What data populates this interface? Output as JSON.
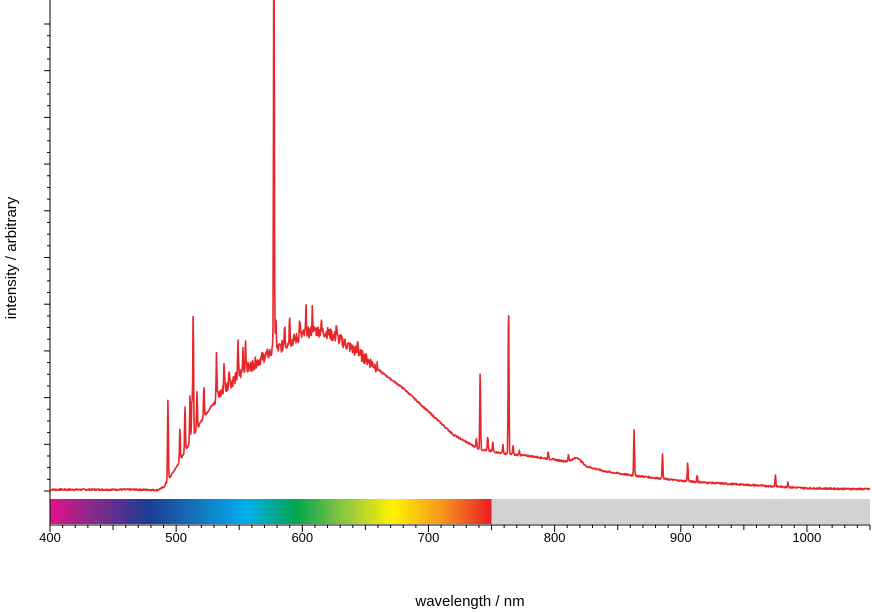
{
  "chart_data": {
    "type": "line",
    "title": "",
    "xlabel": "wavelength / nm",
    "ylabel": "intensity / arbitrary",
    "xlim": [
      400,
      1050
    ],
    "ylim": [
      0,
      100
    ],
    "x_ticks": [
      400,
      500,
      600,
      700,
      800,
      900,
      1000
    ],
    "x_tick_labels": [
      "400",
      "500",
      "600",
      "700",
      "800",
      "900",
      "1000"
    ],
    "y_tick_labels_shown": false,
    "grid": false,
    "legend": "none",
    "line_color": "#e8262a",
    "visible_spectrum_bar": {
      "range_nm": [
        400,
        750
      ],
      "out_of_range_color": "#d2d2d2",
      "colors": [
        "#e4128c",
        "#7b2c8c",
        "#1c3c94",
        "#1474bc",
        "#00aeef",
        "#00a651",
        "#8dc63f",
        "#fff200",
        "#f7941d",
        "#ed1c24"
      ]
    },
    "series": [
      {
        "baseline": [
          [
            400,
            0.3
          ],
          [
            470,
            0.3
          ],
          [
            485,
            0.2
          ],
          [
            490,
            0.8
          ],
          [
            500,
            5
          ],
          [
            510,
            10
          ],
          [
            520,
            15
          ],
          [
            530,
            19
          ],
          [
            540,
            22
          ],
          [
            550,
            24.5
          ],
          [
            560,
            26.5
          ],
          [
            570,
            28.5
          ],
          [
            580,
            30
          ],
          [
            590,
            31.5
          ],
          [
            600,
            33
          ],
          [
            610,
            34
          ],
          [
            620,
            33.5
          ],
          [
            630,
            32
          ],
          [
            640,
            30
          ],
          [
            650,
            28
          ],
          [
            660,
            26
          ],
          [
            670,
            24
          ],
          [
            680,
            22
          ],
          [
            690,
            19.5
          ],
          [
            700,
            17
          ],
          [
            710,
            14.5
          ],
          [
            720,
            12
          ],
          [
            730,
            10.5
          ],
          [
            740,
            9
          ],
          [
            750,
            8.5
          ],
          [
            760,
            8
          ],
          [
            780,
            7.5
          ],
          [
            800,
            6.7
          ],
          [
            810,
            6.3
          ],
          [
            818,
            7.2
          ],
          [
            825,
            5.3
          ],
          [
            840,
            4.2
          ],
          [
            860,
            3.4
          ],
          [
            880,
            2.8
          ],
          [
            900,
            2.2
          ],
          [
            920,
            1.8
          ],
          [
            940,
            1.5
          ],
          [
            960,
            1.2
          ],
          [
            980,
            0.9
          ],
          [
            1000,
            0.6
          ],
          [
            1020,
            0.5
          ],
          [
            1050,
            0.4
          ]
        ],
        "peaks": [
          [
            493.5,
            17.5
          ],
          [
            503,
            7
          ],
          [
            507,
            10
          ],
          [
            511,
            10
          ],
          [
            512.5,
            8.5
          ],
          [
            513.5,
            27
          ],
          [
            516.5,
            8
          ],
          [
            522,
            7
          ],
          [
            532,
            9
          ],
          [
            538,
            6
          ],
          [
            542,
            4
          ],
          [
            549,
            7
          ],
          [
            553,
            5
          ],
          [
            555,
            7
          ],
          [
            577.5,
            96
          ],
          [
            579,
            8
          ],
          [
            586,
            5
          ],
          [
            590,
            6
          ],
          [
            598,
            4
          ],
          [
            603,
            5
          ],
          [
            608,
            5
          ],
          [
            615,
            2
          ],
          [
            627,
            3
          ],
          [
            644,
            3
          ],
          [
            738,
            2
          ],
          [
            741,
            17
          ],
          [
            747,
            3
          ],
          [
            751,
            2
          ],
          [
            759,
            2
          ],
          [
            763.5,
            33
          ],
          [
            767,
            2
          ],
          [
            772,
            1
          ],
          [
            795,
            1.5
          ],
          [
            811,
            1.5
          ],
          [
            863,
            10
          ],
          [
            885.5,
            5.5
          ],
          [
            905.5,
            4
          ],
          [
            913,
            1.5
          ],
          [
            975,
            2.5
          ],
          [
            985,
            1.2
          ]
        ],
        "noise_region_nm": [
          530,
          660
        ],
        "noise_amplitude": 2.5
      }
    ]
  }
}
